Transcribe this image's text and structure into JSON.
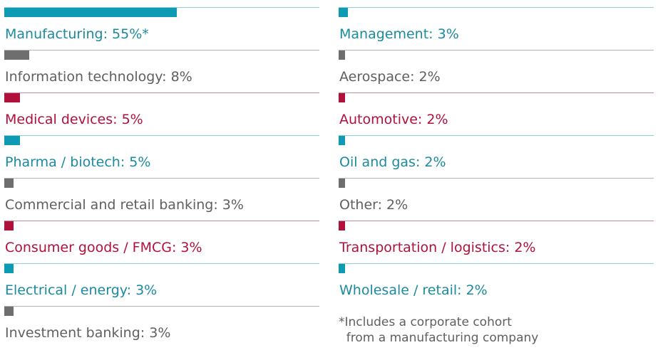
{
  "colors": {
    "teal": "#0c9bb2",
    "gray": "#6e6e6e",
    "red": "#b0113a"
  },
  "chart_data": {
    "type": "bar",
    "unit": "%",
    "categories": [
      "Manufacturing",
      "Information technology",
      "Medical devices",
      "Pharma / biotech",
      "Commercial and retail banking",
      "Consumer goods / FMCG",
      "Electrical / energy",
      "Investment banking",
      "Management",
      "Aerospace",
      "Automotive",
      "Oil and gas",
      "Other",
      "Transportation / logistics",
      "Wholesale / retail"
    ],
    "values": [
      55,
      8,
      5,
      5,
      3,
      3,
      3,
      3,
      3,
      2,
      2,
      2,
      2,
      2,
      2
    ],
    "xlim": [
      0,
      100
    ],
    "items": [
      {
        "label": "Manufacturing: 55%*",
        "value": 55,
        "color": "teal"
      },
      {
        "label": "Information technology: 8%",
        "value": 8,
        "color": "gray"
      },
      {
        "label": "Medical devices: 5%",
        "value": 5,
        "color": "red"
      },
      {
        "label": "Pharma / biotech: 5%",
        "value": 5,
        "color": "teal"
      },
      {
        "label": "Commercial and retail banking: 3%",
        "value": 3,
        "color": "gray"
      },
      {
        "label": "Consumer goods / FMCG: 3%",
        "value": 3,
        "color": "red"
      },
      {
        "label": "Electrical / energy: 3%",
        "value": 3,
        "color": "teal"
      },
      {
        "label": "Investment banking: 3%",
        "value": 3,
        "color": "gray"
      },
      {
        "label": "Management: 3%",
        "value": 3,
        "color": "teal"
      },
      {
        "label": "Aerospace: 2%",
        "value": 2,
        "color": "gray"
      },
      {
        "label": "Automotive: 2%",
        "value": 2,
        "color": "red"
      },
      {
        "label": "Oil and gas: 2%",
        "value": 2,
        "color": "teal"
      },
      {
        "label": "Other: 2%",
        "value": 2,
        "color": "gray"
      },
      {
        "label": "Transportation / logistics: 2%",
        "value": 2,
        "color": "red"
      },
      {
        "label": "Wholesale / retail: 2%",
        "value": 2,
        "color": "teal"
      }
    ],
    "footnote": "*Includes a corporate cohort\n  from a manufacturing company"
  }
}
